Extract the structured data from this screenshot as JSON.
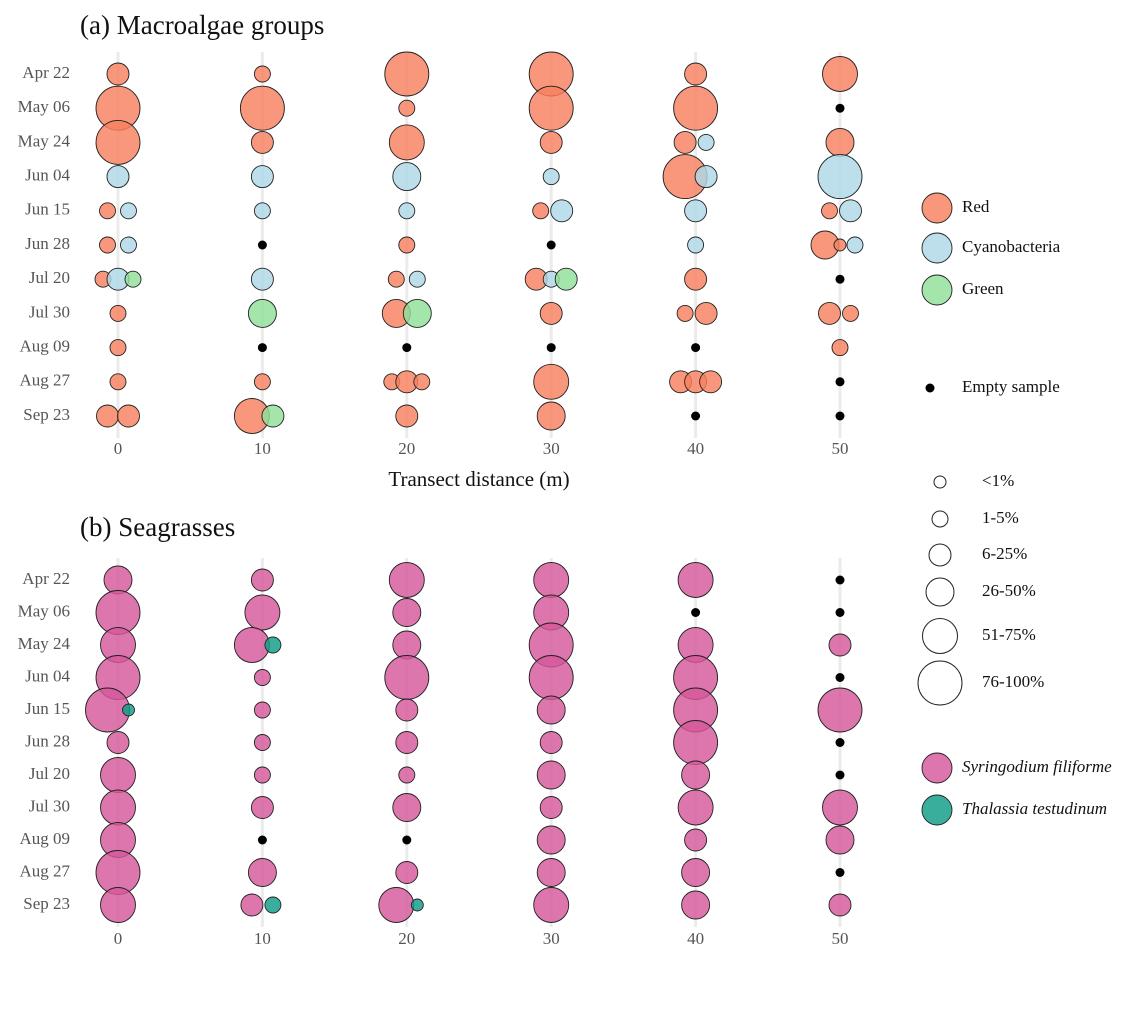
{
  "chart_data": [
    {
      "type": "bubble",
      "title": "(a) Macroalgae groups",
      "x_label": "Transect distance (m)",
      "categories": [
        "Apr 22",
        "May 06",
        "May 24",
        "Jun 04",
        "Jun 15",
        "Jun 28",
        "Jul 20",
        "Jul 30",
        "Aug 09",
        "Aug 27",
        "Sep 23"
      ],
      "xlim": [
        0,
        50
      ],
      "xticks": [
        0,
        10,
        20,
        30,
        40,
        50
      ],
      "grid": true,
      "series": [
        {
          "name": "Red",
          "color": "#f8805f",
          "x": [
            0,
            10,
            20,
            30,
            40,
            50,
            0,
            10,
            20,
            30,
            40,
            0,
            10,
            20,
            30,
            40,
            50,
            40,
            0,
            30,
            50,
            0,
            20,
            50,
            50,
            0,
            20,
            30,
            40,
            0,
            20,
            30,
            40,
            40,
            50,
            50,
            0,
            50,
            0,
            10,
            20,
            20,
            20,
            30,
            40,
            40,
            40,
            0,
            0,
            10,
            20,
            30
          ],
          "y": [
            "Apr 22",
            "Apr 22",
            "Apr 22",
            "Apr 22",
            "Apr 22",
            "Apr 22",
            "May 06",
            "May 06",
            "May 06",
            "May 06",
            "May 06",
            "May 24",
            "May 24",
            "May 24",
            "May 24",
            "May 24",
            "May 24",
            "Jun 04",
            "Jun 15",
            "Jun 15",
            "Jun 15",
            "Jun 28",
            "Jun 28",
            "Jun 28",
            "Jun 28",
            "Jul 20",
            "Jul 20",
            "Jul 20",
            "Jul 20",
            "Jul 30",
            "Jul 30",
            "Jul 30",
            "Jul 30",
            "Jul 30",
            "Jul 30",
            "Jul 30",
            "Aug 09",
            "Aug 09",
            "Aug 27",
            "Aug 27",
            "Aug 27",
            "Aug 27",
            "Aug 27",
            "Aug 27",
            "Aug 27",
            "Aug 27",
            "Aug 27",
            "Sep 23",
            "Sep 23",
            "Sep 23",
            "Sep 23",
            "Sep 23"
          ],
          "size": [
            3,
            2,
            6,
            6,
            3,
            5,
            6,
            6,
            2,
            6,
            6,
            6,
            3,
            5,
            3,
            3,
            4,
            6,
            2,
            2,
            2,
            2,
            2,
            4,
            1,
            2,
            2,
            3,
            3,
            2,
            4,
            3,
            2,
            3,
            3,
            2,
            2,
            2,
            2,
            2,
            2,
            3,
            2,
            5,
            3,
            3,
            3,
            3,
            3,
            5,
            3,
            4
          ]
        },
        {
          "name": "Cyanobacteria",
          "color": "#add8e6",
          "x": [
            40,
            0,
            10,
            20,
            30,
            40,
            50,
            0,
            10,
            20,
            30,
            40,
            50,
            0,
            40,
            50,
            0,
            10,
            20,
            30
          ],
          "y": [
            "May 24",
            "Jun 04",
            "Jun 04",
            "Jun 04",
            "Jun 04",
            "Jun 04",
            "Jun 04",
            "Jun 15",
            "Jun 15",
            "Jun 15",
            "Jun 15",
            "Jun 15",
            "Jun 15",
            "Jun 28",
            "Jun 28",
            "Jun 28",
            "Jul 20",
            "Jul 20",
            "Jul 20",
            "Jul 20"
          ],
          "size": [
            2,
            3,
            3,
            4,
            2,
            3,
            6,
            2,
            2,
            2,
            3,
            3,
            3,
            2,
            2,
            2,
            3,
            3,
            2,
            2
          ]
        },
        {
          "name": "Green",
          "color": "#90df98",
          "x": [
            0,
            30,
            10,
            20,
            10
          ],
          "y": [
            "Jul 20",
            "Jul 20",
            "Jul 30",
            "Jul 30",
            "Sep 23"
          ],
          "size": [
            2,
            3,
            4,
            4,
            3
          ]
        }
      ],
      "empty": {
        "x": [
          50,
          10,
          30,
          50,
          10,
          20,
          30,
          40,
          50,
          40,
          50
        ],
        "y": [
          "May 06",
          "Jun 28",
          "Jun 28",
          "Jul 20",
          "Aug 09",
          "Aug 09",
          "Aug 09",
          "Aug 09",
          "Aug 27",
          "Sep 23",
          "Sep 23"
        ]
      },
      "empty_legend": {
        "label": "Empty sample",
        "color": "#000000"
      },
      "size_legend": [
        {
          "value": 1,
          "label": "<1%"
        },
        {
          "value": 2,
          "label": "1-5%"
        },
        {
          "value": 3,
          "label": "6-25%"
        },
        {
          "value": 4,
          "label": "26-50%"
        },
        {
          "value": 5,
          "label": "51-75%"
        },
        {
          "value": 6,
          "label": "76-100%"
        }
      ]
    },
    {
      "type": "bubble",
      "title": "(b) Seagrasses",
      "categories": [
        "Apr 22",
        "May 06",
        "May 24",
        "Jun 04",
        "Jun 15",
        "Jun 28",
        "Jul 20",
        "Jul 30",
        "Aug 09",
        "Aug 27",
        "Sep 23"
      ],
      "xlim": [
        0,
        50
      ],
      "xticks": [
        0,
        10,
        20,
        30,
        40,
        50
      ],
      "grid": true,
      "series": [
        {
          "name": "Syringodium filiforme",
          "color": "#d6589b",
          "x": [
            0,
            10,
            20,
            30,
            40,
            0,
            10,
            20,
            30,
            0,
            10,
            20,
            30,
            40,
            50,
            0,
            10,
            20,
            30,
            40,
            0,
            10,
            20,
            30,
            40,
            50,
            0,
            10,
            20,
            30,
            40,
            0,
            10,
            20,
            30,
            40,
            0,
            10,
            20,
            30,
            40,
            50,
            0,
            30,
            40,
            50,
            0,
            10,
            20,
            30,
            40,
            0,
            10,
            20,
            30,
            40,
            50
          ],
          "y": [
            "Apr 22",
            "Apr 22",
            "Apr 22",
            "Apr 22",
            "Apr 22",
            "May 06",
            "May 06",
            "May 06",
            "May 06",
            "May 24",
            "May 24",
            "May 24",
            "May 24",
            "May 24",
            "May 24",
            "Jun 04",
            "Jun 04",
            "Jun 04",
            "Jun 04",
            "Jun 04",
            "Jun 15",
            "Jun 15",
            "Jun 15",
            "Jun 15",
            "Jun 15",
            "Jun 15",
            "Jun 28",
            "Jun 28",
            "Jun 28",
            "Jun 28",
            "Jun 28",
            "Jul 20",
            "Jul 20",
            "Jul 20",
            "Jul 20",
            "Jul 20",
            "Jul 30",
            "Jul 30",
            "Jul 30",
            "Jul 30",
            "Jul 30",
            "Jul 30",
            "Aug 09",
            "Aug 09",
            "Aug 09",
            "Aug 09",
            "Aug 27",
            "Aug 27",
            "Aug 27",
            "Aug 27",
            "Aug 27",
            "Sep 23",
            "Sep 23",
            "Sep 23",
            "Sep 23",
            "Sep 23",
            "Sep 23"
          ],
          "size": [
            4,
            3,
            5,
            5,
            5,
            6,
            5,
            4,
            5,
            5,
            5,
            4,
            6,
            5,
            3,
            6,
            2,
            6,
            6,
            6,
            6,
            2,
            3,
            4,
            6,
            6,
            3,
            2,
            3,
            3,
            6,
            5,
            2,
            2,
            4,
            4,
            5,
            3,
            4,
            3,
            5,
            5,
            5,
            4,
            3,
            4,
            6,
            4,
            3,
            4,
            4,
            5,
            3,
            5,
            5,
            4,
            3
          ]
        },
        {
          "name": "Thalassia testudinum",
          "color": "#0f9c88",
          "x": [
            10,
            0,
            10,
            20
          ],
          "y": [
            "May 24",
            "Jun 15",
            "Sep 23",
            "Sep 23"
          ],
          "size": [
            2,
            1,
            2,
            1
          ]
        }
      ],
      "empty": {
        "x": [
          50,
          40,
          50,
          50,
          50,
          50,
          10,
          20,
          50
        ],
        "y": [
          "Apr 22",
          "May 06",
          "May 06",
          "Jun 04",
          "Jun 28",
          "Jul 20",
          "Aug 09",
          "Aug 09",
          "Aug 27"
        ]
      }
    }
  ]
}
